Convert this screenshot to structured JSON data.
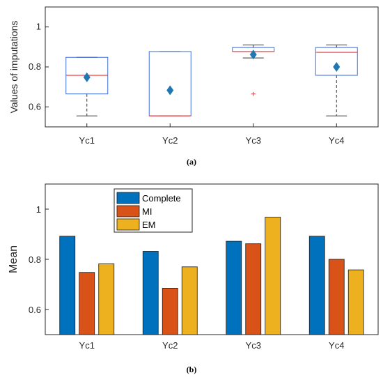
{
  "chart_data": [
    {
      "type": "box",
      "ylabel": "Values of imputations",
      "categories": [
        "Yc1",
        "Yc2",
        "Yc3",
        "Yc4"
      ],
      "ylim": [
        0.5,
        1.1
      ],
      "yticks": [
        0.6,
        0.8,
        1
      ],
      "ytick_labels": [
        "0.6",
        "0.8",
        "1"
      ],
      "grid": false,
      "boxes": [
        {
          "category": "Yc1",
          "whisker_low": 0.555,
          "q1": 0.665,
          "median": 0.758,
          "q3": 0.848,
          "whisker_high": 0.848,
          "mean": 0.748,
          "outliers": []
        },
        {
          "category": "Yc2",
          "whisker_low": 0.555,
          "q1": 0.555,
          "median": 0.555,
          "q3": 0.877,
          "whisker_high": 0.877,
          "mean": 0.683,
          "outliers": []
        },
        {
          "category": "Yc3",
          "whisker_low": 0.845,
          "q1": 0.877,
          "median": 0.877,
          "q3": 0.897,
          "whisker_high": 0.91,
          "mean": 0.862,
          "outliers": [
            0.665
          ]
        },
        {
          "category": "Yc4",
          "whisker_low": 0.555,
          "q1": 0.758,
          "median": 0.873,
          "q3": 0.897,
          "whisker_high": 0.91,
          "mean": 0.8,
          "outliers": []
        }
      ],
      "caption": "(a)",
      "colors": {
        "box": "#3f6fd8",
        "median": "#e83b3b",
        "whisker": "#333333",
        "mean": "#1f77b4",
        "outlier": "#e83b3b"
      }
    },
    {
      "type": "bar",
      "ylabel": "Mean",
      "categories": [
        "Yc1",
        "Yc2",
        "Yc3",
        "Yc4"
      ],
      "ylim": [
        0.5,
        1.1
      ],
      "yticks": [
        0.6,
        0.8,
        1
      ],
      "ytick_labels": [
        "0.6",
        "0.8",
        "1"
      ],
      "grid": false,
      "legend_position": "top-left",
      "series": [
        {
          "name": "Complete",
          "color": "#0072bd",
          "values": [
            0.892,
            0.832,
            0.872,
            0.892
          ]
        },
        {
          "name": "MI",
          "color": "#d95319",
          "values": [
            0.748,
            0.685,
            0.862,
            0.8
          ]
        },
        {
          "name": "EM",
          "color": "#edb120",
          "values": [
            0.782,
            0.77,
            0.968,
            0.758
          ]
        }
      ],
      "caption": "(b)"
    }
  ]
}
